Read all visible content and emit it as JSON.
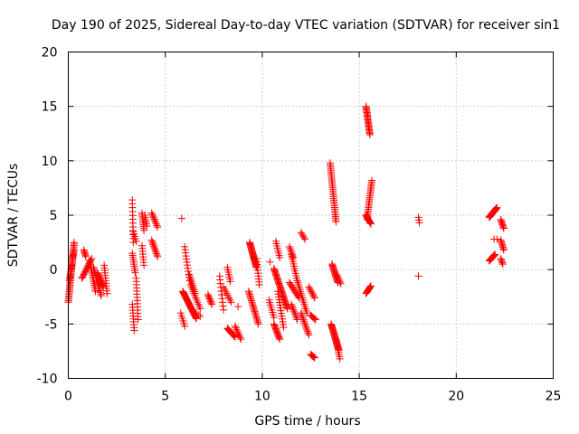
{
  "chart_data": {
    "type": "scatter",
    "title": "Day 190 of 2025, Sidereal Day-to-day VTEC variation (SDTVAR) for receiver sin1",
    "xlabel": "GPS time / hours",
    "ylabel": "SDTVAR / TECUs",
    "xlim": [
      0,
      25
    ],
    "ylim": [
      -10,
      20
    ],
    "xticks": [
      0,
      5,
      10,
      15,
      20,
      25
    ],
    "yticks": [
      -10,
      -5,
      0,
      5,
      10,
      15,
      20
    ],
    "xtick_labels": [
      "0",
      "5",
      "10",
      "15",
      "20",
      "25"
    ],
    "ytick_labels": [
      "-10",
      "-5",
      "0",
      "5",
      "10",
      "15",
      "20"
    ],
    "grid": true,
    "marker": "+",
    "color": "#ff0000",
    "tracks": [
      {
        "x0": 0.0,
        "x1": 0.3,
        "y0": -3.0,
        "y1": 2.5,
        "n": 40
      },
      {
        "x0": 0.05,
        "x1": 0.3,
        "y0": -1.0,
        "y1": 1.8,
        "n": 18
      },
      {
        "x0": 0.8,
        "x1": 0.9,
        "y0": 1.8,
        "y1": 1.2,
        "n": 6
      },
      {
        "x0": 0.7,
        "x1": 1.2,
        "y0": -0.8,
        "y1": 1.0,
        "n": 16
      },
      {
        "x0": 1.1,
        "x1": 1.4,
        "y0": 0.8,
        "y1": -2.0,
        "n": 16
      },
      {
        "x0": 1.3,
        "x1": 1.7,
        "y0": 0.2,
        "y1": -2.4,
        "n": 18
      },
      {
        "x0": 1.5,
        "x1": 1.8,
        "y0": -0.3,
        "y1": -1.6,
        "n": 14
      },
      {
        "x0": 1.85,
        "x1": 2.0,
        "y0": 0.4,
        "y1": -2.2,
        "n": 12
      },
      {
        "x0": 3.3,
        "x1": 3.35,
        "y0": 6.4,
        "y1": 2.5,
        "n": 12
      },
      {
        "x0": 3.35,
        "x1": 3.5,
        "y0": 3.5,
        "y1": 2.6,
        "n": 5
      },
      {
        "x0": 3.3,
        "x1": 3.45,
        "y0": 1.5,
        "y1": -0.3,
        "n": 10
      },
      {
        "x0": 3.3,
        "x1": 3.4,
        "y0": -3.2,
        "y1": -5.6,
        "n": 10
      },
      {
        "x0": 3.5,
        "x1": 3.6,
        "y0": -0.8,
        "y1": -4.6,
        "n": 14
      },
      {
        "x0": 3.8,
        "x1": 3.9,
        "y0": 5.2,
        "y1": 3.6,
        "n": 10
      },
      {
        "x0": 3.95,
        "x1": 4.05,
        "y0": 5.0,
        "y1": 4.0,
        "n": 6
      },
      {
        "x0": 3.8,
        "x1": 3.9,
        "y0": 2.2,
        "y1": 0.4,
        "n": 8
      },
      {
        "x0": 4.3,
        "x1": 4.6,
        "y0": 5.2,
        "y1": 3.9,
        "n": 10
      },
      {
        "x0": 4.3,
        "x1": 4.6,
        "y0": 2.7,
        "y1": 1.2,
        "n": 12
      },
      {
        "x0": 5.85,
        "x1": 5.85,
        "y0": 4.7,
        "y1": 4.7,
        "n": 1
      },
      {
        "x0": 6.0,
        "x1": 6.25,
        "y0": 2.1,
        "y1": -1.0,
        "n": 12
      },
      {
        "x0": 6.25,
        "x1": 6.55,
        "y0": -0.5,
        "y1": -2.2,
        "n": 10
      },
      {
        "x0": 5.9,
        "x1": 6.6,
        "y0": -2.0,
        "y1": -4.5,
        "n": 34
      },
      {
        "x0": 5.8,
        "x1": 6.0,
        "y0": -4.0,
        "y1": -5.2,
        "n": 6
      },
      {
        "x0": 6.3,
        "x1": 6.8,
        "y0": -1.4,
        "y1": -3.6,
        "n": 12
      },
      {
        "x0": 6.6,
        "x1": 6.8,
        "y0": -4.0,
        "y1": -4.3,
        "n": 3
      },
      {
        "x0": 7.2,
        "x1": 7.4,
        "y0": -2.3,
        "y1": -3.2,
        "n": 8
      },
      {
        "x0": 7.8,
        "x1": 8.0,
        "y0": -0.6,
        "y1": -3.7,
        "n": 10
      },
      {
        "x0": 8.0,
        "x1": 8.4,
        "y0": -1.6,
        "y1": -3.0,
        "n": 8
      },
      {
        "x0": 8.2,
        "x1": 8.35,
        "y0": 0.2,
        "y1": -1.1,
        "n": 7
      },
      {
        "x0": 8.2,
        "x1": 8.6,
        "y0": -5.4,
        "y1": -6.2,
        "n": 12
      },
      {
        "x0": 8.6,
        "x1": 8.9,
        "y0": -5.2,
        "y1": -6.4,
        "n": 9
      },
      {
        "x0": 8.75,
        "x1": 8.8,
        "y0": -3.4,
        "y1": -3.4,
        "n": 1
      },
      {
        "x0": 9.35,
        "x1": 9.7,
        "y0": 2.5,
        "y1": 0.2,
        "n": 28
      },
      {
        "x0": 9.7,
        "x1": 9.85,
        "y0": 1.0,
        "y1": -1.4,
        "n": 10
      },
      {
        "x0": 9.3,
        "x1": 9.8,
        "y0": -2.0,
        "y1": -5.0,
        "n": 22
      },
      {
        "x0": 10.4,
        "x1": 10.5,
        "y0": 0.7,
        "y1": 0.7,
        "n": 1
      },
      {
        "x0": 10.35,
        "x1": 10.6,
        "y0": -2.8,
        "y1": -4.4,
        "n": 8
      },
      {
        "x0": 10.7,
        "x1": 10.9,
        "y0": 2.6,
        "y1": 1.1,
        "n": 8
      },
      {
        "x0": 10.6,
        "x1": 11.3,
        "y0": 0.1,
        "y1": -3.6,
        "n": 36
      },
      {
        "x0": 10.6,
        "x1": 10.9,
        "y0": -5.0,
        "y1": -6.4,
        "n": 14
      },
      {
        "x0": 10.8,
        "x1": 11.1,
        "y0": -2.0,
        "y1": -5.3,
        "n": 14
      },
      {
        "x0": 11.4,
        "x1": 11.6,
        "y0": 2.1,
        "y1": 1.1,
        "n": 7
      },
      {
        "x0": 11.5,
        "x1": 11.8,
        "y0": 1.4,
        "y1": -1.0,
        "n": 12
      },
      {
        "x0": 11.4,
        "x1": 11.9,
        "y0": -1.2,
        "y1": -2.6,
        "n": 12
      },
      {
        "x0": 11.5,
        "x1": 11.8,
        "y0": -3.2,
        "y1": -4.6,
        "n": 10
      },
      {
        "x0": 12.0,
        "x1": 12.2,
        "y0": 3.4,
        "y1": 2.8,
        "n": 5
      },
      {
        "x0": 11.8,
        "x1": 12.3,
        "y0": -1.0,
        "y1": -4.0,
        "n": 16
      },
      {
        "x0": 12.0,
        "x1": 12.4,
        "y0": -4.0,
        "y1": -6.0,
        "n": 14
      },
      {
        "x0": 12.4,
        "x1": 12.7,
        "y0": -1.6,
        "y1": -2.6,
        "n": 8
      },
      {
        "x0": 12.5,
        "x1": 12.75,
        "y0": -4.2,
        "y1": -4.6,
        "n": 6
      },
      {
        "x0": 12.5,
        "x1": 12.7,
        "y0": -7.8,
        "y1": -8.1,
        "n": 7
      },
      {
        "x0": 13.5,
        "x1": 13.8,
        "y0": 9.8,
        "y1": 4.4,
        "n": 34
      },
      {
        "x0": 13.6,
        "x1": 13.9,
        "y0": 0.5,
        "y1": -1.2,
        "n": 18
      },
      {
        "x0": 13.85,
        "x1": 14.05,
        "y0": -0.5,
        "y1": -1.3,
        "n": 6
      },
      {
        "x0": 13.55,
        "x1": 13.95,
        "y0": -5.0,
        "y1": -7.4,
        "n": 30
      },
      {
        "x0": 13.8,
        "x1": 14.0,
        "y0": -6.4,
        "y1": -8.2,
        "n": 10
      },
      {
        "x0": 15.35,
        "x1": 15.55,
        "y0": 15.0,
        "y1": 12.4,
        "n": 24
      },
      {
        "x0": 15.4,
        "x1": 15.65,
        "y0": 4.6,
        "y1": 8.2,
        "n": 24
      },
      {
        "x0": 15.35,
        "x1": 15.6,
        "y0": 5.0,
        "y1": 4.2,
        "n": 10
      },
      {
        "x0": 15.35,
        "x1": 15.6,
        "y0": -2.2,
        "y1": -1.5,
        "n": 10
      },
      {
        "x0": 18.05,
        "x1": 18.1,
        "y0": 4.8,
        "y1": 4.3,
        "n": 3
      },
      {
        "x0": 18.05,
        "x1": 18.05,
        "y0": -0.6,
        "y1": -0.6,
        "n": 1
      },
      {
        "x0": 21.7,
        "x1": 22.1,
        "y0": 4.8,
        "y1": 5.7,
        "n": 30
      },
      {
        "x0": 21.7,
        "x1": 22.0,
        "y0": 0.8,
        "y1": 1.4,
        "n": 12
      },
      {
        "x0": 21.95,
        "x1": 22.1,
        "y0": 2.8,
        "y1": 2.8,
        "n": 2
      },
      {
        "x0": 22.3,
        "x1": 22.45,
        "y0": 4.6,
        "y1": 3.8,
        "n": 8
      },
      {
        "x0": 22.3,
        "x1": 22.45,
        "y0": 2.7,
        "y1": 1.8,
        "n": 8
      },
      {
        "x0": 22.3,
        "x1": 22.4,
        "y0": 1.0,
        "y1": 0.5,
        "n": 5
      }
    ]
  }
}
